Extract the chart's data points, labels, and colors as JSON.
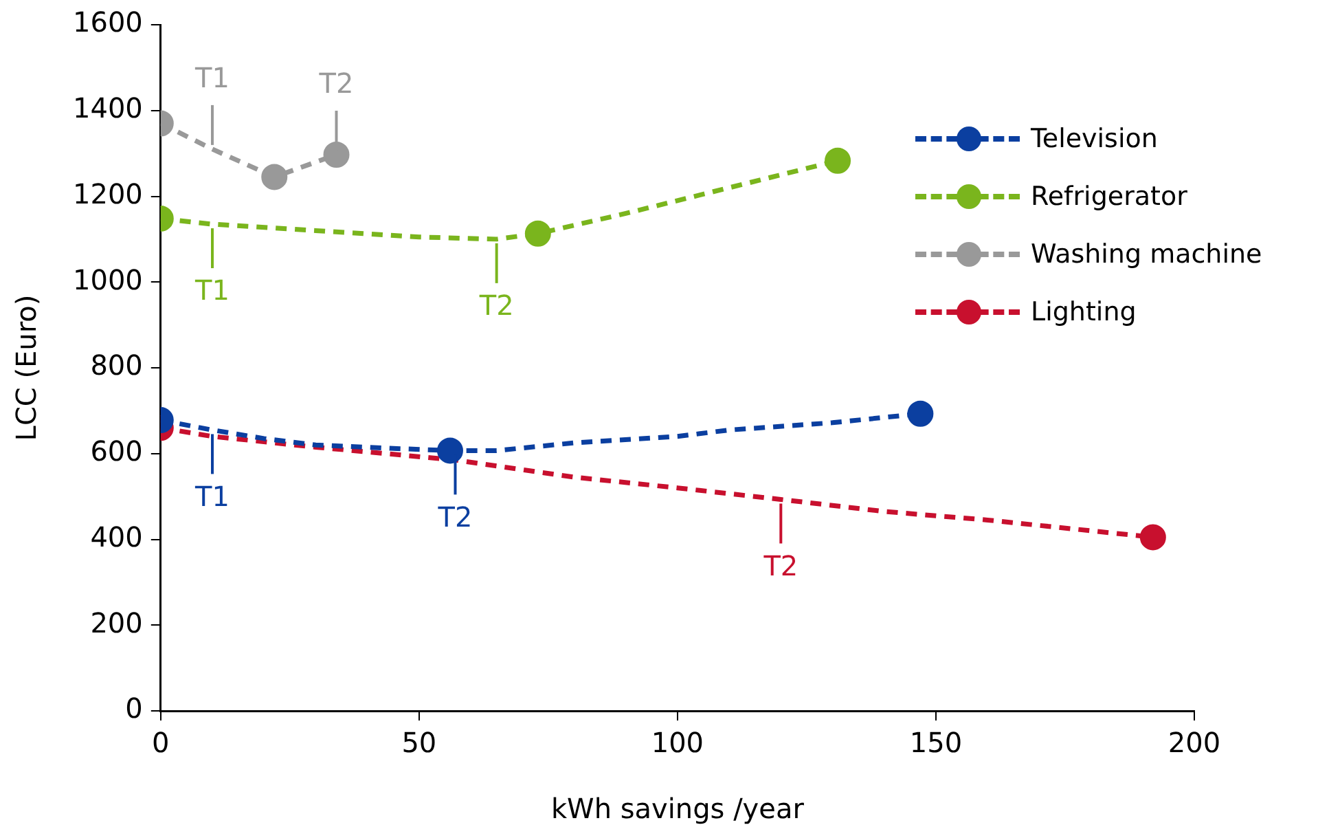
{
  "chart_data": {
    "type": "line",
    "xlabel": "kWh savings /year",
    "ylabel": "LCC (Euro)",
    "xlim": [
      0,
      200
    ],
    "xticks": [
      0,
      50,
      100,
      150,
      200
    ],
    "ylim": [
      0,
      1600
    ],
    "yticks": [
      0,
      200,
      400,
      600,
      800,
      1000,
      1200,
      1400,
      1600
    ],
    "grid": false,
    "legend": "top right",
    "line_style": "dashed",
    "series": [
      {
        "name": "Television",
        "color": "#0b3fa0",
        "marker": "none",
        "x": [
          0,
          10,
          20,
          30,
          45,
          56,
          65,
          80,
          100,
          110,
          130,
          147
        ],
        "values": [
          678,
          655,
          635,
          620,
          612,
          607,
          607,
          625,
          640,
          655,
          672,
          693
        ]
      },
      {
        "name": "Refrigerator",
        "color": "#7ab51d",
        "marker": "none",
        "x": [
          0,
          10,
          30,
          50,
          65,
          73,
          90,
          110,
          131
        ],
        "values": [
          1148,
          1135,
          1120,
          1105,
          1100,
          1113,
          1160,
          1220,
          1283
        ]
      },
      {
        "name": "Washing machine",
        "color": "#999999",
        "marker": "none",
        "x": [
          0,
          10,
          22,
          34
        ],
        "values": [
          1370,
          1310,
          1245,
          1297
        ]
      },
      {
        "name": "Lighting",
        "color": "#c8102e",
        "marker": "none",
        "x": [
          0,
          10,
          30,
          57,
          80,
          100,
          120,
          140,
          160,
          192
        ],
        "values": [
          660,
          640,
          615,
          585,
          545,
          520,
          493,
          465,
          445,
          405
        ]
      },
      {
        "color": "#0b3fa0",
        "type": "scatter",
        "marker": "circle",
        "x": [
          0,
          56,
          147
        ],
        "values": [
          678,
          607,
          693
        ]
      },
      {
        "color": "#7ab51d",
        "type": "scatter",
        "marker": "circle",
        "x": [
          0,
          73,
          131
        ],
        "values": [
          1148,
          1113,
          1283
        ]
      },
      {
        "color": "#999999",
        "type": "scatter",
        "marker": "circle",
        "x": [
          0,
          22,
          34
        ],
        "values": [
          1370,
          1245,
          1297
        ]
      },
      {
        "color": "#c8102e",
        "type": "scatter",
        "marker": "circle",
        "x": [
          0,
          192
        ],
        "values": [
          660,
          405
        ]
      }
    ],
    "annotations": [
      {
        "text": "T1",
        "x": 10,
        "y": 1310
      },
      {
        "text": "T2",
        "x": 34,
        "y": 1297
      },
      {
        "text": "T1",
        "x": 10,
        "y": 1135
      },
      {
        "text": "T2",
        "x": 65,
        "y": 1100
      },
      {
        "text": "T1",
        "x": 10,
        "y": 655
      },
      {
        "text": "T2",
        "x": 57,
        "y": 607
      },
      {
        "text": "T2",
        "x": 120,
        "y": 493
      }
    ]
  }
}
